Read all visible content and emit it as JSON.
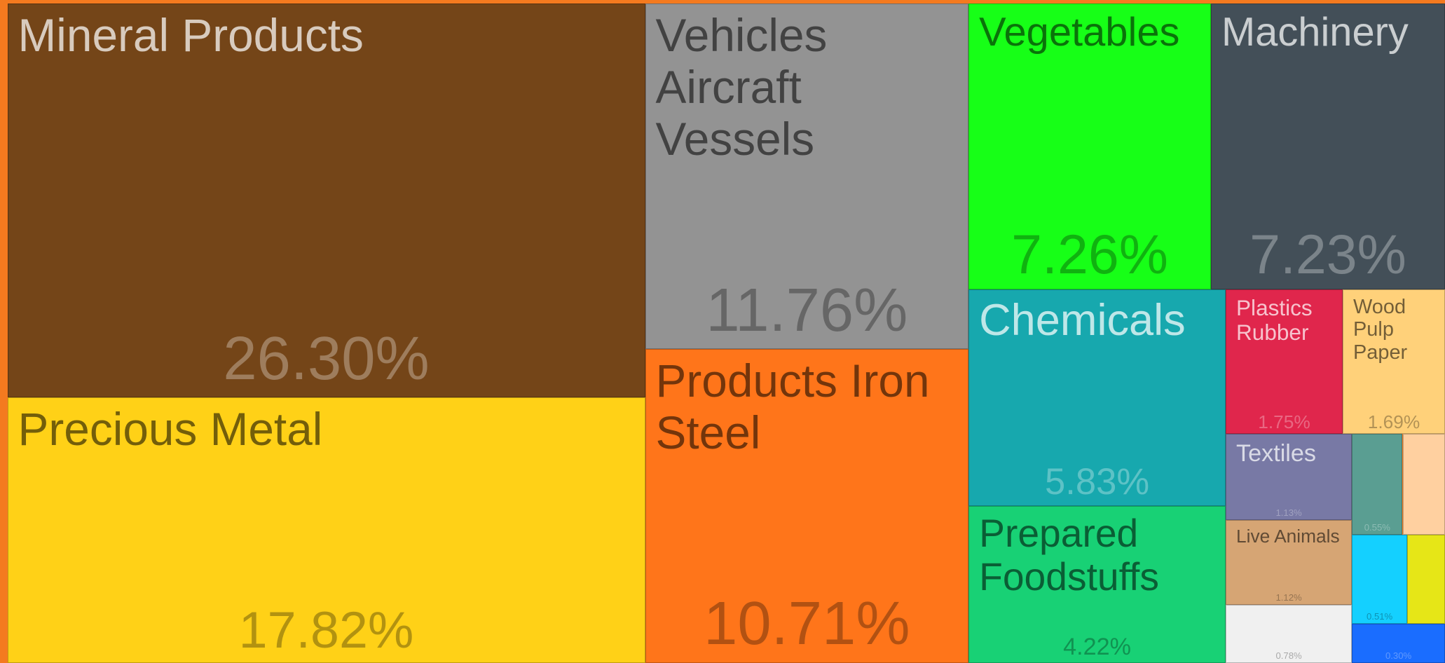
{
  "chart_data": {
    "type": "treemap",
    "categories": [
      "Mineral Products",
      "Precious Metal",
      "Vehicles Aircraft Vessels",
      "Products Iron Steel",
      "Vegetables",
      "Machinery",
      "Chemicals",
      "Prepared Foodstuffs",
      "Plastics Rubber",
      "Wood Pulp Paper",
      "Textiles",
      "Live Animals",
      null,
      null,
      null,
      null,
      null,
      null
    ],
    "values": [
      26.3,
      17.82,
      11.76,
      10.71,
      7.26,
      7.23,
      5.83,
      4.22,
      1.75,
      1.69,
      1.13,
      1.12,
      0.78,
      0.55,
      0.46,
      0.51,
      0.36,
      0.3
    ],
    "value_labels": [
      "26.30%",
      "17.82%",
      "11.76%",
      "10.71%",
      "7.26%",
      "7.23%",
      "5.83%",
      "4.22%",
      "1.75%",
      "1.69%",
      "1.13%",
      "1.12%",
      "0.78%",
      "0.55%",
      null,
      "0.51%",
      null,
      "0.30%"
    ],
    "colors": [
      "#744518",
      "#ffd117",
      "#939393",
      "#ff751a",
      "#17ff17",
      "#434f58",
      "#17a8ae",
      "#18d175",
      "#e0264c",
      "#ffd17a",
      "#7879a5",
      "#d6a574",
      "#f0f0f0",
      "#5a9e92",
      "#ffd0a0",
      "#14d0ff",
      "#e6e617",
      "#1a6dff"
    ]
  }
}
